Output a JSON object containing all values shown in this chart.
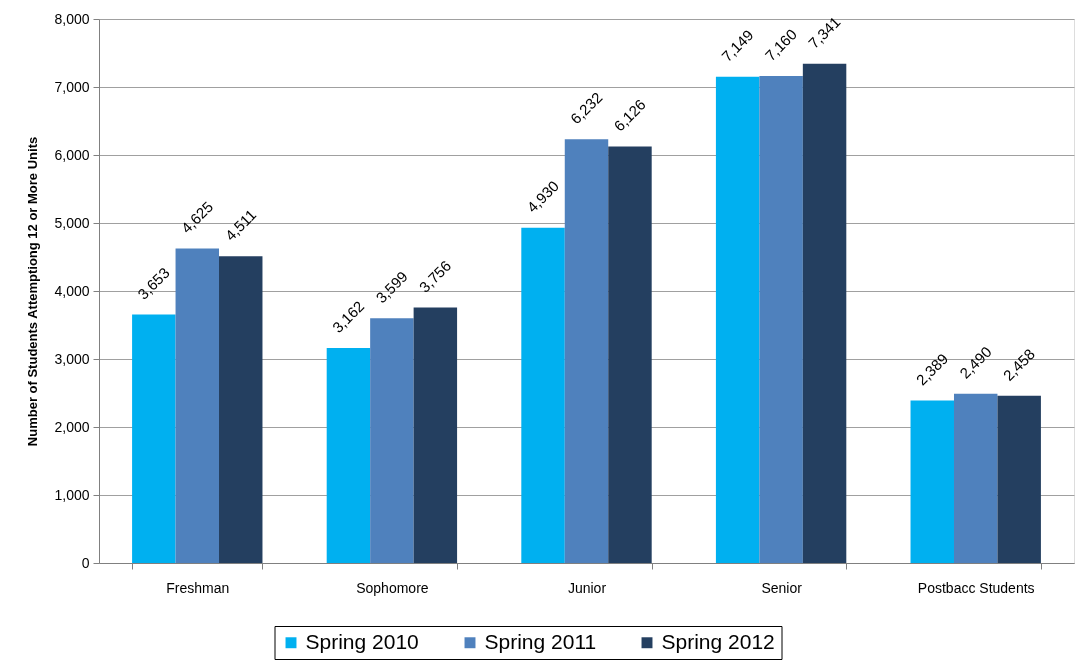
{
  "chart_data": {
    "type": "bar",
    "ylabel": "Number of Students Attemptiong 12 or More Units",
    "categories": [
      "Freshman",
      "Sophomore",
      "Junior",
      "Senior",
      "Postbacc Students"
    ],
    "series": [
      {
        "name": "Spring 2010",
        "color": "#00b0f0",
        "values": [
          3653,
          3162,
          4930,
          7149,
          2389
        ],
        "value_labels": [
          "3,653",
          "3,162",
          "4,930",
          "7,149",
          "2,389"
        ]
      },
      {
        "name": "Spring 2011",
        "color": "#4f81bd",
        "values": [
          4625,
          3599,
          6232,
          7160,
          2490
        ],
        "value_labels": [
          "4,625",
          "3,599",
          "6,232",
          "7,160",
          "2,490"
        ]
      },
      {
        "name": "Spring 2012",
        "color": "#243f60",
        "values": [
          4511,
          3756,
          6126,
          7341,
          2458
        ],
        "value_labels": [
          "4,511",
          "3,756",
          "6,126",
          "7,341",
          "2,458"
        ]
      }
    ],
    "ylim": [
      0,
      8000
    ],
    "yticks": [
      0,
      {
        "value": 1000,
        "label": "1,000"
      },
      {
        "value": 2000,
        "label": "2,000"
      },
      {
        "value": 3000,
        "label": "3,000"
      },
      {
        "value": 4000,
        "label": "4,000"
      },
      {
        "value": 5000,
        "label": "5,000"
      },
      {
        "value": 6000,
        "label": "6,000"
      },
      {
        "value": 7000,
        "label": "7,000"
      },
      {
        "value": 8000,
        "label": "8,000"
      }
    ],
    "grid": "y",
    "legend": "bottom"
  }
}
